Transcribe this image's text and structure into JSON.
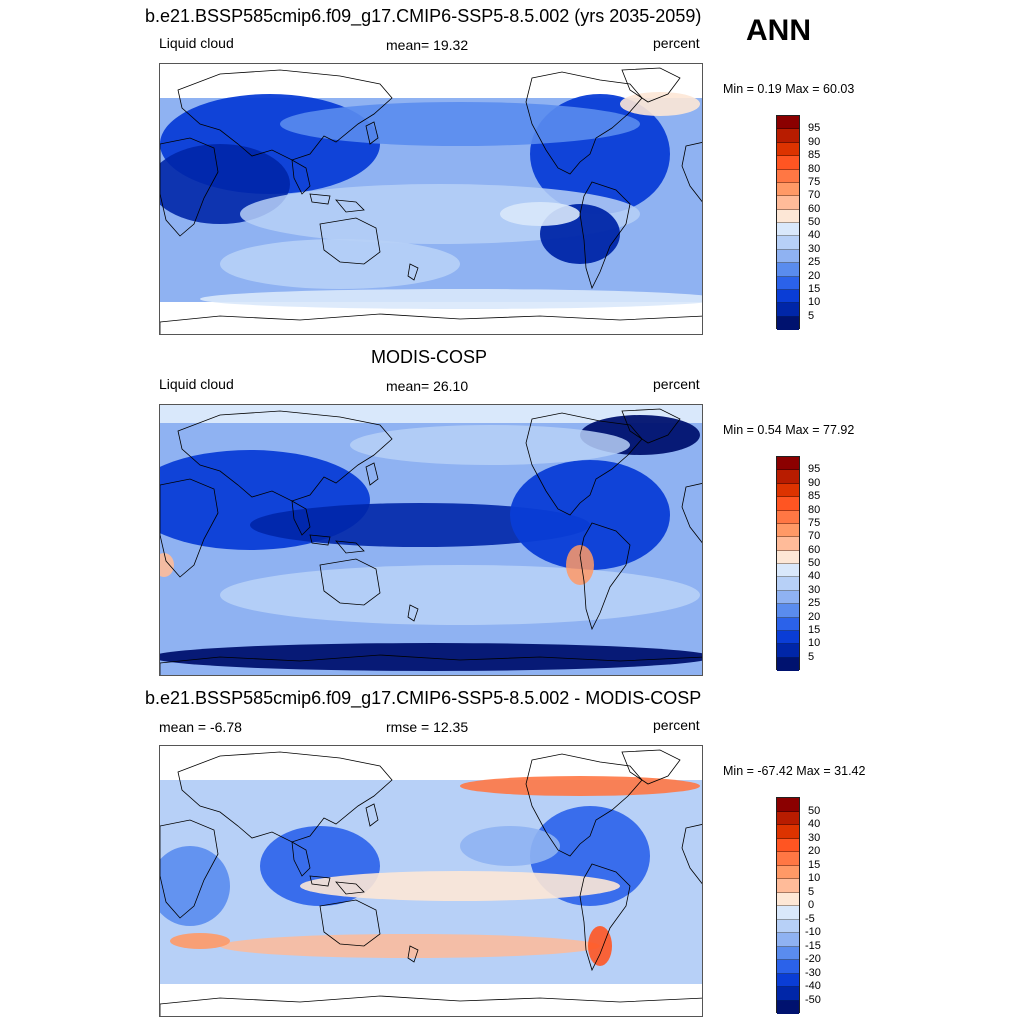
{
  "season": "ANN",
  "panels": [
    {
      "id": "model",
      "title": "b.e21.BSSP585cmip6.f09_g17.CMIP6-SSP5-8.5.002 (yrs 2035-2059)",
      "left_label": "Liquid cloud",
      "center_label": "mean=  19.32",
      "units": "percent",
      "minmax": "Min =   0.19 Max =  60.03",
      "scale": "abs",
      "colorbar_labels": [
        "95",
        "90",
        "85",
        "80",
        "75",
        "70",
        "60",
        "50",
        "40",
        "30",
        "25",
        "20",
        "15",
        "10",
        "5"
      ]
    },
    {
      "id": "obs",
      "title": "MODIS-COSP",
      "left_label": "Liquid cloud",
      "center_label": "mean=  26.10",
      "units": "percent",
      "minmax": "Min =   0.54 Max =  77.92",
      "scale": "abs",
      "colorbar_labels": [
        "95",
        "90",
        "85",
        "80",
        "75",
        "70",
        "60",
        "50",
        "40",
        "30",
        "25",
        "20",
        "15",
        "10",
        "5"
      ]
    },
    {
      "id": "diff",
      "title": "b.e21.BSSP585cmip6.f09_g17.CMIP6-SSP5-8.5.002 - MODIS-COSP",
      "left_label": "mean =  -6.78",
      "center_label": "rmse =  12.35",
      "units": "percent",
      "minmax": "Min = -67.42 Max =  31.42",
      "scale": "diff",
      "colorbar_labels": [
        "50",
        "40",
        "30",
        "20",
        "15",
        "10",
        "5",
        "0",
        "-5",
        "-10",
        "-15",
        "-20",
        "-30",
        "-40",
        "-50"
      ]
    }
  ],
  "colors": {
    "abs_scale": [
      "#8b0000",
      "#b81c00",
      "#dd3300",
      "#ff5522",
      "#ff7744",
      "#ff9966",
      "#ffbb99",
      "#fde7d6",
      "#d9e8fb",
      "#b7d0f7",
      "#8fb2f2",
      "#5a8cee",
      "#2b62ea",
      "#0a3dd6",
      "#0026a8",
      "#00126f"
    ],
    "diff_scale": [
      "#8b0000",
      "#b81c00",
      "#dd3300",
      "#ff5522",
      "#ff7744",
      "#ff9966",
      "#ffbb99",
      "#fde7d6",
      "#d9e8fb",
      "#b7d0f7",
      "#8fb2f2",
      "#5a8cee",
      "#2b62ea",
      "#0a3dd6",
      "#0026a8",
      "#00126f"
    ],
    "coastline": "#000000",
    "frame": "#555555"
  }
}
